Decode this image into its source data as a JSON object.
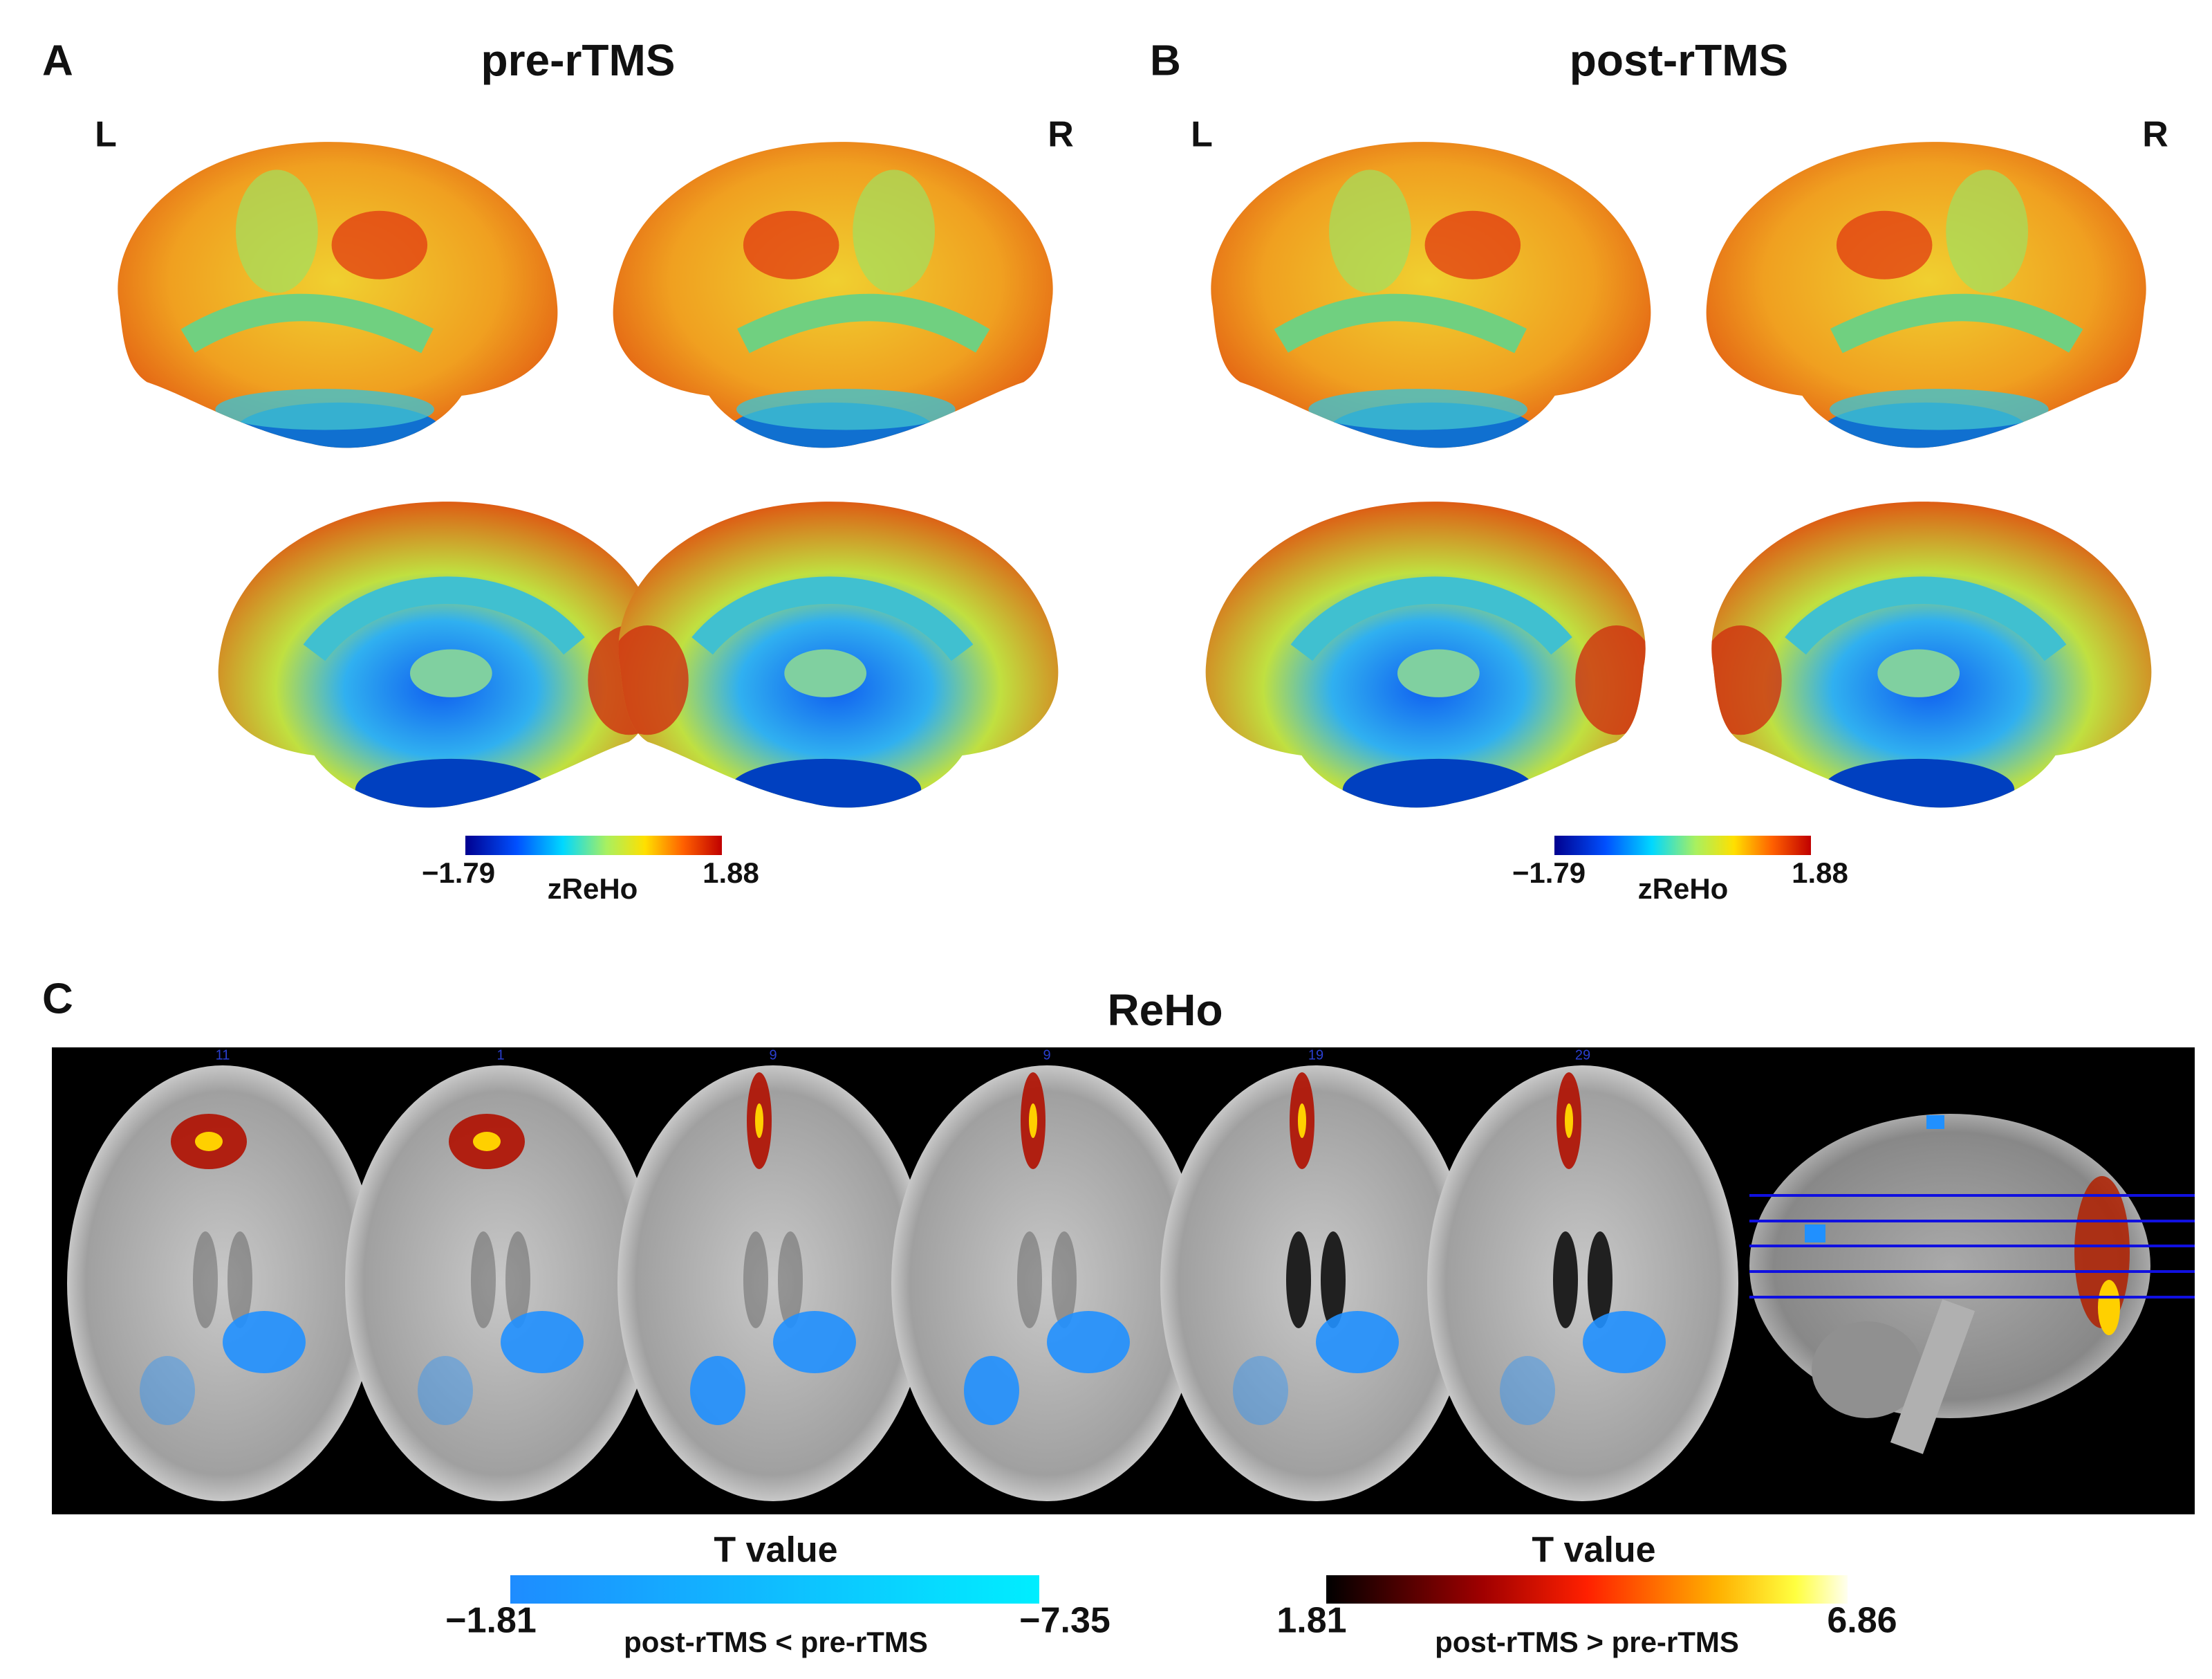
{
  "panel_a": {
    "label": "A",
    "title": "pre-rTMS",
    "left": "L",
    "right": "R",
    "colorbar": {
      "min": "−1.79",
      "max": "1.88",
      "label": "zReHo"
    }
  },
  "panel_b": {
    "label": "B",
    "title": "post-rTMS",
    "left": "L",
    "right": "R",
    "colorbar": {
      "min": "−1.79",
      "max": "1.88",
      "label": "zReHo"
    }
  },
  "panel_c": {
    "label": "C",
    "title": "ReHo",
    "slices": [
      "11",
      "1",
      "9",
      "9",
      "19",
      "29"
    ],
    "negative_colorbar": {
      "title": "T value",
      "min": "−1.81",
      "max": "−7.35",
      "label": "post-rTMS < pre-rTMS"
    },
    "positive_colorbar": {
      "title": "T value",
      "min": "1.81",
      "max": "6.86",
      "label": "post-rTMS > pre-rTMS"
    }
  }
}
